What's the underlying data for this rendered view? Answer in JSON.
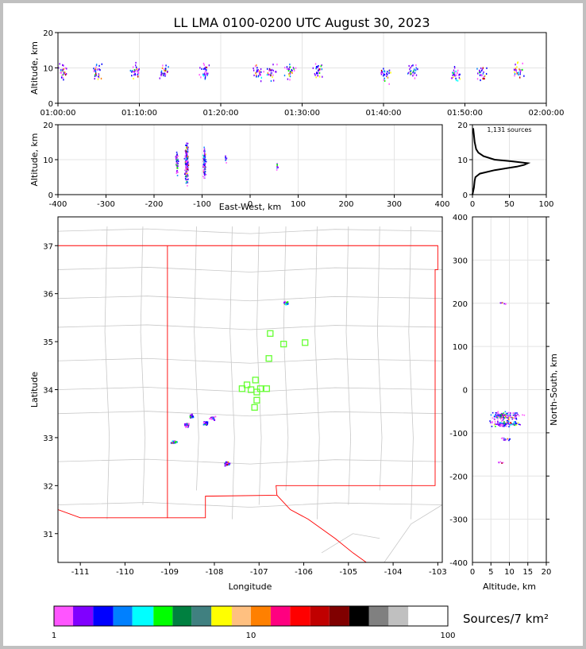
{
  "title": "LL LMA 0100-0200 UTC August 30, 2023",
  "chart_data": [
    {
      "id": "time-altitude",
      "type": "scatter",
      "ylabel": "Altitude, km",
      "xlim": [
        "01:00:00",
        "02:00:00"
      ],
      "ylim": [
        0,
        20
      ],
      "xticks": [
        "01:00:00",
        "01:10:00",
        "01:20:00",
        "01:30:00",
        "01:40:00",
        "01:50:00",
        "02:00:00"
      ],
      "yticks": [
        0,
        10,
        20
      ],
      "grid": true,
      "clusters": [
        {
          "t_min": 0.5,
          "alt_km": 9
        },
        {
          "t_min": 4.8,
          "alt_km": 9
        },
        {
          "t_min": 9.5,
          "alt_km": 9
        },
        {
          "t_min": 13.0,
          "alt_km": 9
        },
        {
          "t_min": 18.0,
          "alt_km": 9
        },
        {
          "t_min": 24.5,
          "alt_km": 9
        },
        {
          "t_min": 26.2,
          "alt_km": 9
        },
        {
          "t_min": 28.5,
          "alt_km": 9
        },
        {
          "t_min": 32.0,
          "alt_km": 9
        },
        {
          "t_min": 40.3,
          "alt_km": 8
        },
        {
          "t_min": 43.6,
          "alt_km": 9
        },
        {
          "t_min": 48.8,
          "alt_km": 8
        },
        {
          "t_min": 52.0,
          "alt_km": 8
        },
        {
          "t_min": 56.5,
          "alt_km": 9
        }
      ]
    },
    {
      "id": "eastwest-altitude",
      "type": "scatter",
      "xlabel": "East-West, km",
      "ylabel": "Altitude, km",
      "xlim": [
        -400,
        400
      ],
      "ylim": [
        0,
        20
      ],
      "xticks": [
        -400,
        -300,
        -200,
        -100,
        0,
        100,
        200,
        300,
        400
      ],
      "yticks": [
        0,
        10,
        20
      ],
      "grid": true,
      "clusters": [
        {
          "x_km": -152,
          "alt_km": 9
        },
        {
          "x_km": -132,
          "alt_km": 9
        },
        {
          "x_km": -95,
          "alt_km": 9
        },
        {
          "x_km": -50,
          "alt_km": 10
        },
        {
          "x_km": 57,
          "alt_km": 8
        }
      ]
    },
    {
      "id": "altitude-histogram",
      "type": "line",
      "annotation": "1,131 sources",
      "xlim": [
        0,
        100
      ],
      "ylim": [
        0,
        20
      ],
      "xticks": [
        0,
        50,
        100
      ],
      "yticks": [
        0,
        10,
        20
      ],
      "grid": true,
      "alt_km": [
        0,
        2,
        4,
        5,
        6,
        7,
        8,
        8.5,
        9,
        9.5,
        10,
        11,
        12,
        13,
        15,
        17,
        19
      ],
      "count": [
        0,
        2,
        3,
        4,
        10,
        30,
        60,
        70,
        75,
        55,
        30,
        15,
        8,
        5,
        3,
        2,
        1
      ]
    },
    {
      "id": "plan-view",
      "type": "scatter",
      "xlabel": "Longitude",
      "ylabel": "Latitude",
      "xlim": [
        -111.5,
        -102.9
      ],
      "ylim": [
        30.4,
        37.6
      ],
      "xticks": [
        -111,
        -110,
        -109,
        -108,
        -107,
        -106,
        -105,
        -104,
        -103
      ],
      "yticks": [
        31,
        32,
        33,
        34,
        35,
        36,
        37
      ],
      "clusters": [
        {
          "lon": -108.9,
          "lat": 32.9
        },
        {
          "lon": -108.6,
          "lat": 33.25
        },
        {
          "lon": -108.5,
          "lat": 33.45
        },
        {
          "lon": -108.2,
          "lat": 33.3
        },
        {
          "lon": -108.05,
          "lat": 33.4
        },
        {
          "lon": -107.7,
          "lat": 32.45
        },
        {
          "lon": -106.4,
          "lat": 35.8
        }
      ],
      "stations": [
        {
          "lon": -106.75,
          "lat": 35.17
        },
        {
          "lon": -106.45,
          "lat": 34.95
        },
        {
          "lon": -105.97,
          "lat": 34.98
        },
        {
          "lon": -106.78,
          "lat": 34.65
        },
        {
          "lon": -107.08,
          "lat": 34.2
        },
        {
          "lon": -107.27,
          "lat": 34.1
        },
        {
          "lon": -107.38,
          "lat": 34.02
        },
        {
          "lon": -107.18,
          "lat": 34.0
        },
        {
          "lon": -106.97,
          "lat": 34.02
        },
        {
          "lon": -106.83,
          "lat": 34.02
        },
        {
          "lon": -107.05,
          "lat": 33.95
        },
        {
          "lon": -107.05,
          "lat": 33.78
        },
        {
          "lon": -107.1,
          "lat": 33.63
        }
      ]
    },
    {
      "id": "altitude-northsouth",
      "type": "scatter",
      "xlabel": "Altitude, km",
      "ylabel": "North-South, km",
      "xlim": [
        0,
        20
      ],
      "ylim": [
        -400,
        400
      ],
      "xticks": [
        0,
        5,
        10,
        15,
        20
      ],
      "yticks": [
        -400,
        -300,
        -200,
        -100,
        0,
        100,
        200,
        300,
        400
      ],
      "grid": true,
      "clusters": [
        {
          "alt_km": 8,
          "y_km": 200
        },
        {
          "alt_km": 9,
          "y_km": -60
        },
        {
          "alt_km": 9,
          "y_km": -80
        },
        {
          "alt_km": 9,
          "y_km": -115
        },
        {
          "alt_km": 8,
          "y_km": -168
        }
      ]
    },
    {
      "id": "colorbar",
      "type": "heatmap",
      "label": "Sources/7 km²",
      "range": [
        1,
        100
      ],
      "scale": "log",
      "tick_labels": [
        "1",
        "10",
        "100"
      ],
      "colors": [
        "#ff55ff",
        "#8000ff",
        "#0000ff",
        "#0080ff",
        "#00ffff",
        "#00ff00",
        "#008040",
        "#408080",
        "#ffff00",
        "#ffc080",
        "#ff8000",
        "#ff0080",
        "#ff0000",
        "#c00000",
        "#800000",
        "#000000",
        "#808080",
        "#c0c0c0",
        "#ffffff"
      ],
      "bounds": [
        1,
        1.25,
        1.58,
        2,
        2.5,
        3.2,
        4,
        5,
        6.3,
        8,
        10,
        12.6,
        15.8,
        20,
        25,
        31.6,
        39.8,
        50,
        63,
        100
      ]
    }
  ]
}
